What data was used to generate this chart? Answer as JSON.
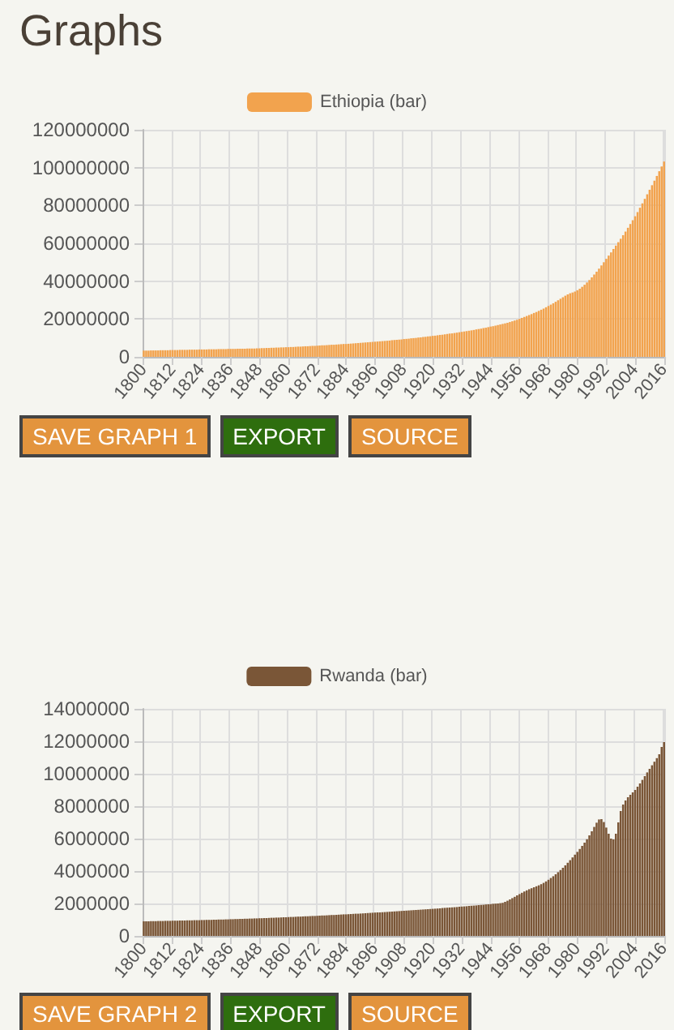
{
  "chart_data": [
    {
      "type": "other",
      "title": "Graphs"
    },
    {
      "type": "bar",
      "legend": "top",
      "grid": true,
      "ylim": [
        0,
        120000000
      ],
      "yticks": [
        0,
        20000000,
        40000000,
        60000000,
        80000000,
        100000000,
        120000000
      ],
      "annotations": [
        "SAVE GRAPH 1",
        "EXPORT",
        "SOURCE"
      ],
      "categories": [
        "1800",
        null,
        null,
        null,
        null,
        null,
        null,
        null,
        null,
        null,
        null,
        null,
        "1812",
        null,
        null,
        null,
        null,
        null,
        null,
        null,
        null,
        null,
        null,
        null,
        "1824",
        null,
        null,
        null,
        null,
        null,
        null,
        null,
        null,
        null,
        null,
        null,
        "1836",
        null,
        null,
        null,
        null,
        null,
        null,
        null,
        null,
        null,
        null,
        null,
        "1848",
        null,
        null,
        null,
        null,
        null,
        null,
        null,
        null,
        null,
        null,
        null,
        "1860",
        null,
        null,
        null,
        null,
        null,
        null,
        null,
        null,
        null,
        null,
        null,
        "1872",
        null,
        null,
        null,
        null,
        null,
        null,
        null,
        null,
        null,
        null,
        null,
        "1884",
        null,
        null,
        null,
        null,
        null,
        null,
        null,
        null,
        null,
        null,
        null,
        "1896",
        null,
        null,
        null,
        null,
        null,
        null,
        null,
        null,
        null,
        null,
        null,
        "1908",
        null,
        null,
        null,
        null,
        null,
        null,
        null,
        null,
        null,
        null,
        null,
        "1920",
        null,
        null,
        null,
        null,
        null,
        null,
        null,
        null,
        null,
        null,
        null,
        "1932",
        null,
        null,
        null,
        null,
        null,
        null,
        null,
        null,
        null,
        null,
        null,
        "1944",
        null,
        null,
        null,
        null,
        null,
        null,
        null,
        null,
        null,
        null,
        null,
        "1956",
        null,
        null,
        null,
        null,
        null,
        null,
        null,
        null,
        null,
        null,
        null,
        "1968",
        null,
        null,
        null,
        null,
        null,
        null,
        null,
        null,
        null,
        null,
        null,
        "1980",
        null,
        null,
        null,
        null,
        null,
        null,
        null,
        null,
        null,
        null,
        null,
        "1992",
        null,
        null,
        null,
        null,
        null,
        null,
        null,
        null,
        null,
        null,
        null,
        "2004",
        null,
        null,
        null,
        null,
        null,
        null,
        null,
        null,
        null,
        null,
        null,
        "2016"
      ],
      "series": [
        {
          "name": "Ethiopia (bar)",
          "color": "#f2a34e",
          "values": [
            3300000,
            3300000,
            3300000,
            3400000,
            3400000,
            3400000,
            3400000,
            3500000,
            3500000,
            3500000,
            3500000,
            3600000,
            3600000,
            3600000,
            3600000,
            3700000,
            3700000,
            3700000,
            3700000,
            3800000,
            3800000,
            3800000,
            3800000,
            3900000,
            3900000,
            3900000,
            3900000,
            4000000,
            4000000,
            4000000,
            4000000,
            4100000,
            4100000,
            4100000,
            4100000,
            4200000,
            4200000,
            4200000,
            4200000,
            4300000,
            4300000,
            4300000,
            4300000,
            4400000,
            4400000,
            4400000,
            4400000,
            4500000,
            4500000,
            4600000,
            4600000,
            4700000,
            4700000,
            4800000,
            4800000,
            4900000,
            4900000,
            5000000,
            5000000,
            5100000,
            5100000,
            5200000,
            5200000,
            5300000,
            5400000,
            5400000,
            5500000,
            5600000,
            5600000,
            5700000,
            5800000,
            5800000,
            5900000,
            6000000,
            6100000,
            6100000,
            6200000,
            6300000,
            6400000,
            6400000,
            6500000,
            6600000,
            6700000,
            6800000,
            6800000,
            6900000,
            7000000,
            7100000,
            7200000,
            7300000,
            7400000,
            7500000,
            7600000,
            7700000,
            7800000,
            7900000,
            8000000,
            8100000,
            8200000,
            8300000,
            8400000,
            8500000,
            8600000,
            8800000,
            8900000,
            9000000,
            9100000,
            9200000,
            9400000,
            9500000,
            9600000,
            9800000,
            9900000,
            10000000,
            10200000,
            10300000,
            10500000,
            10600000,
            10800000,
            10900000,
            11100000,
            11200000,
            11400000,
            11600000,
            11700000,
            11900000,
            12100000,
            12300000,
            12400000,
            12600000,
            12800000,
            13000000,
            13200000,
            13400000,
            13600000,
            13800000,
            14000000,
            14200000,
            14500000,
            14700000,
            14900000,
            15200000,
            15400000,
            15700000,
            16000000,
            16200000,
            16500000,
            16800000,
            17100000,
            17400000,
            17700000,
            18000000,
            18400000,
            18800000,
            19200000,
            19600000,
            20100000,
            20600000,
            21100000,
            21600000,
            22100000,
            22600000,
            23200000,
            23700000,
            24300000,
            24900000,
            25500000,
            26200000,
            26900000,
            27600000,
            28300000,
            29100000,
            29900000,
            30700000,
            31500000,
            32300000,
            33000000,
            33600000,
            34000000,
            34500000,
            35200000,
            36000000,
            37000000,
            38100000,
            39300000,
            40600000,
            42000000,
            43500000,
            45000000,
            46600000,
            48300000,
            50000000,
            51800000,
            53500000,
            55200000,
            57000000,
            58800000,
            60600000,
            62400000,
            64300000,
            66200000,
            68200000,
            70200000,
            72200000,
            74300000,
            76500000,
            78800000,
            81100000,
            83500000,
            85900000,
            88300000,
            90700000,
            93100000,
            95600000,
            98100000,
            100600000,
            103200000
          ]
        }
      ]
    },
    {
      "type": "bar",
      "legend": "top",
      "grid": true,
      "ylim": [
        0,
        14000000
      ],
      "yticks": [
        0,
        2000000,
        4000000,
        6000000,
        8000000,
        10000000,
        12000000,
        14000000
      ],
      "annotations": [
        "SAVE GRAPH 2",
        "EXPORT",
        "SOURCE"
      ],
      "categories": [
        "1800",
        null,
        null,
        null,
        null,
        null,
        null,
        null,
        null,
        null,
        null,
        null,
        "1812",
        null,
        null,
        null,
        null,
        null,
        null,
        null,
        null,
        null,
        null,
        null,
        "1824",
        null,
        null,
        null,
        null,
        null,
        null,
        null,
        null,
        null,
        null,
        null,
        "1836",
        null,
        null,
        null,
        null,
        null,
        null,
        null,
        null,
        null,
        null,
        null,
        "1848",
        null,
        null,
        null,
        null,
        null,
        null,
        null,
        null,
        null,
        null,
        null,
        "1860",
        null,
        null,
        null,
        null,
        null,
        null,
        null,
        null,
        null,
        null,
        null,
        "1872",
        null,
        null,
        null,
        null,
        null,
        null,
        null,
        null,
        null,
        null,
        null,
        "1884",
        null,
        null,
        null,
        null,
        null,
        null,
        null,
        null,
        null,
        null,
        null,
        "1896",
        null,
        null,
        null,
        null,
        null,
        null,
        null,
        null,
        null,
        null,
        null,
        "1908",
        null,
        null,
        null,
        null,
        null,
        null,
        null,
        null,
        null,
        null,
        null,
        "1920",
        null,
        null,
        null,
        null,
        null,
        null,
        null,
        null,
        null,
        null,
        null,
        "1932",
        null,
        null,
        null,
        null,
        null,
        null,
        null,
        null,
        null,
        null,
        null,
        "1944",
        null,
        null,
        null,
        null,
        null,
        null,
        null,
        null,
        null,
        null,
        null,
        "1956",
        null,
        null,
        null,
        null,
        null,
        null,
        null,
        null,
        null,
        null,
        null,
        "1968",
        null,
        null,
        null,
        null,
        null,
        null,
        null,
        null,
        null,
        null,
        null,
        "1980",
        null,
        null,
        null,
        null,
        null,
        null,
        null,
        null,
        null,
        null,
        null,
        "1992",
        null,
        null,
        null,
        null,
        null,
        null,
        null,
        null,
        null,
        null,
        null,
        "2004",
        null,
        null,
        null,
        null,
        null,
        null,
        null,
        null,
        null,
        null,
        null,
        "2016"
      ],
      "series": [
        {
          "name": "Rwanda (bar)",
          "color": "#7a5637",
          "values": [
            900000,
            900000,
            900000,
            910000,
            910000,
            910000,
            920000,
            920000,
            920000,
            930000,
            930000,
            930000,
            940000,
            940000,
            940000,
            950000,
            950000,
            950000,
            960000,
            960000,
            960000,
            970000,
            970000,
            970000,
            980000,
            980000,
            990000,
            990000,
            990000,
            1000000,
            1000000,
            1010000,
            1010000,
            1010000,
            1020000,
            1020000,
            1030000,
            1030000,
            1040000,
            1040000,
            1050000,
            1050000,
            1060000,
            1060000,
            1070000,
            1070000,
            1080000,
            1080000,
            1090000,
            1090000,
            1100000,
            1100000,
            1110000,
            1120000,
            1120000,
            1130000,
            1130000,
            1140000,
            1150000,
            1150000,
            1160000,
            1170000,
            1170000,
            1180000,
            1190000,
            1190000,
            1200000,
            1210000,
            1210000,
            1220000,
            1230000,
            1230000,
            1240000,
            1250000,
            1260000,
            1260000,
            1270000,
            1280000,
            1290000,
            1290000,
            1300000,
            1310000,
            1320000,
            1330000,
            1330000,
            1340000,
            1350000,
            1360000,
            1370000,
            1370000,
            1380000,
            1390000,
            1400000,
            1410000,
            1420000,
            1430000,
            1440000,
            1450000,
            1450000,
            1460000,
            1470000,
            1480000,
            1490000,
            1500000,
            1510000,
            1520000,
            1530000,
            1540000,
            1550000,
            1560000,
            1570000,
            1580000,
            1590000,
            1600000,
            1610000,
            1620000,
            1630000,
            1640000,
            1650000,
            1660000,
            1670000,
            1680000,
            1690000,
            1700000,
            1720000,
            1730000,
            1740000,
            1750000,
            1760000,
            1770000,
            1780000,
            1800000,
            1810000,
            1820000,
            1830000,
            1850000,
            1860000,
            1870000,
            1880000,
            1900000,
            1910000,
            1920000,
            1940000,
            1950000,
            1960000,
            1980000,
            1990000,
            2000000,
            2020000,
            2040000,
            2100000,
            2170000,
            2250000,
            2330000,
            2410000,
            2500000,
            2580000,
            2660000,
            2740000,
            2810000,
            2880000,
            2940000,
            3000000,
            3060000,
            3120000,
            3190000,
            3270000,
            3360000,
            3460000,
            3570000,
            3680000,
            3800000,
            3930000,
            4060000,
            4200000,
            4350000,
            4510000,
            4670000,
            4840000,
            5010000,
            5180000,
            5360000,
            5550000,
            5750000,
            5960000,
            6200000,
            6450000,
            6720000,
            6980000,
            7180000,
            7200000,
            7020000,
            6680000,
            6300000,
            6000000,
            5950000,
            6300000,
            7000000,
            7700000,
            8100000,
            8350000,
            8550000,
            8700000,
            8850000,
            9000000,
            9200000,
            9400000,
            9620000,
            9850000,
            10080000,
            10300000,
            10520000,
            10740000,
            10960000,
            11200000,
            11650000,
            11950000
          ]
        }
      ]
    }
  ]
}
